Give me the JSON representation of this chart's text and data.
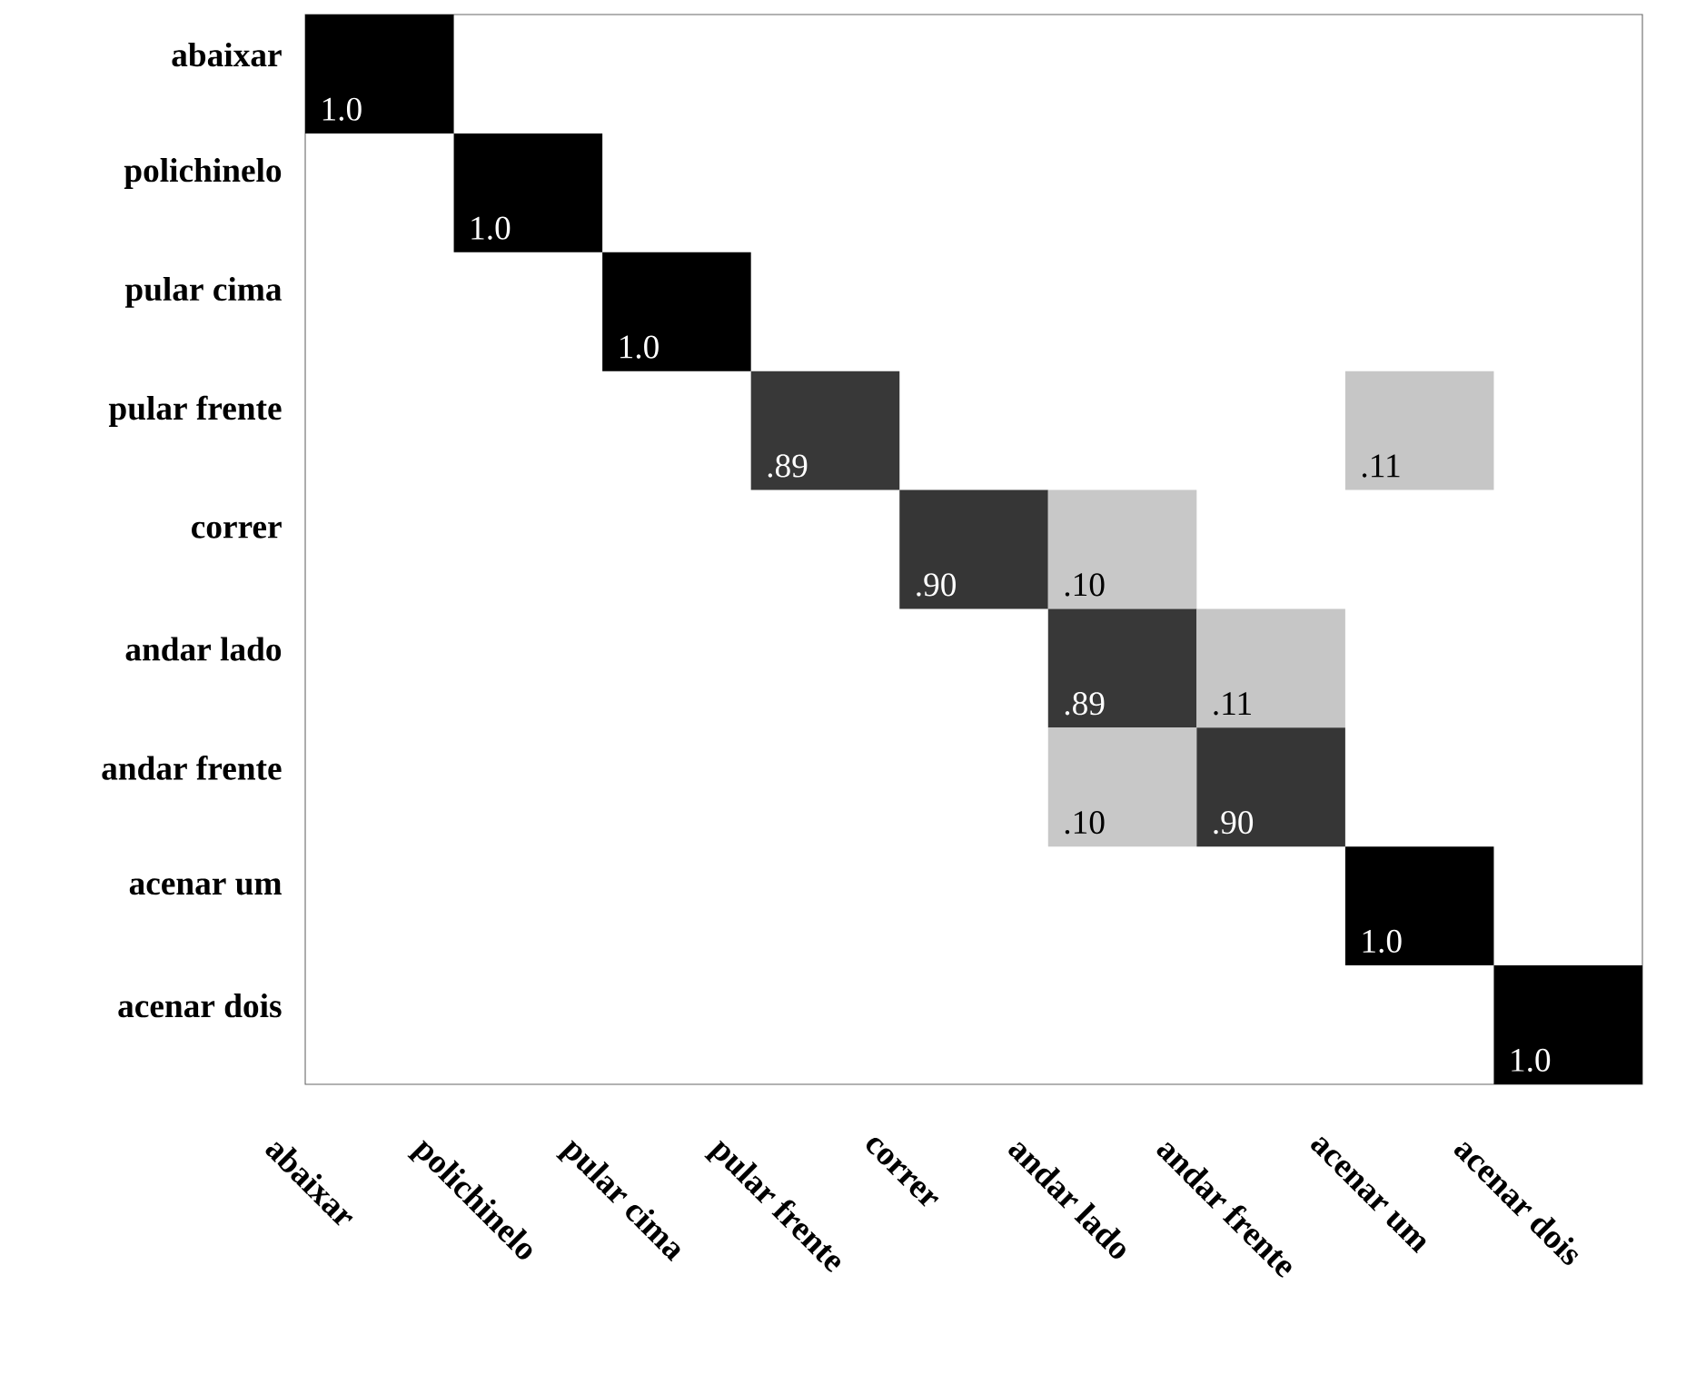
{
  "chart_data": {
    "type": "heatmap",
    "categories": [
      "abaixar",
      "polichinelo",
      "pular cima",
      "pular frente",
      "correr",
      "andar lado",
      "andar frente",
      "acenar um",
      "acenar dois"
    ],
    "y_categories": [
      "abaixar",
      "polichinelo",
      "pular cima",
      "pular frente",
      "correr",
      "andar lado",
      "andar frente",
      "acenar um",
      "acenar dois"
    ],
    "cells": [
      [
        1.0,
        null,
        null,
        null,
        null,
        null,
        null,
        null,
        null
      ],
      [
        null,
        1.0,
        null,
        null,
        null,
        null,
        null,
        null,
        null
      ],
      [
        null,
        null,
        1.0,
        null,
        null,
        null,
        null,
        null,
        null
      ],
      [
        null,
        null,
        null,
        0.89,
        null,
        null,
        null,
        0.11,
        null
      ],
      [
        null,
        null,
        null,
        null,
        0.9,
        0.1,
        null,
        null,
        null
      ],
      [
        null,
        null,
        null,
        null,
        null,
        0.89,
        0.11,
        null,
        null
      ],
      [
        null,
        null,
        null,
        null,
        null,
        0.1,
        0.9,
        null,
        null
      ],
      [
        null,
        null,
        null,
        null,
        null,
        null,
        null,
        1.0,
        null
      ],
      [
        null,
        null,
        null,
        null,
        null,
        null,
        null,
        null,
        1.0
      ]
    ],
    "cell_labels": [
      [
        "1.0",
        null,
        null,
        null,
        null,
        null,
        null,
        null,
        null
      ],
      [
        null,
        "1.0",
        null,
        null,
        null,
        null,
        null,
        null,
        null
      ],
      [
        null,
        null,
        "1.0",
        null,
        null,
        null,
        null,
        null,
        null
      ],
      [
        null,
        null,
        null,
        ".89",
        null,
        null,
        null,
        ".11",
        null
      ],
      [
        null,
        null,
        null,
        null,
        ".90",
        ".10",
        null,
        null,
        null
      ],
      [
        null,
        null,
        null,
        null,
        null,
        ".89",
        ".11",
        null,
        null
      ],
      [
        null,
        null,
        null,
        null,
        null,
        ".10",
        ".90",
        null,
        null
      ],
      [
        null,
        null,
        null,
        null,
        null,
        null,
        null,
        "1.0",
        null
      ],
      [
        null,
        null,
        null,
        null,
        null,
        null,
        null,
        null,
        "1.0"
      ]
    ]
  }
}
